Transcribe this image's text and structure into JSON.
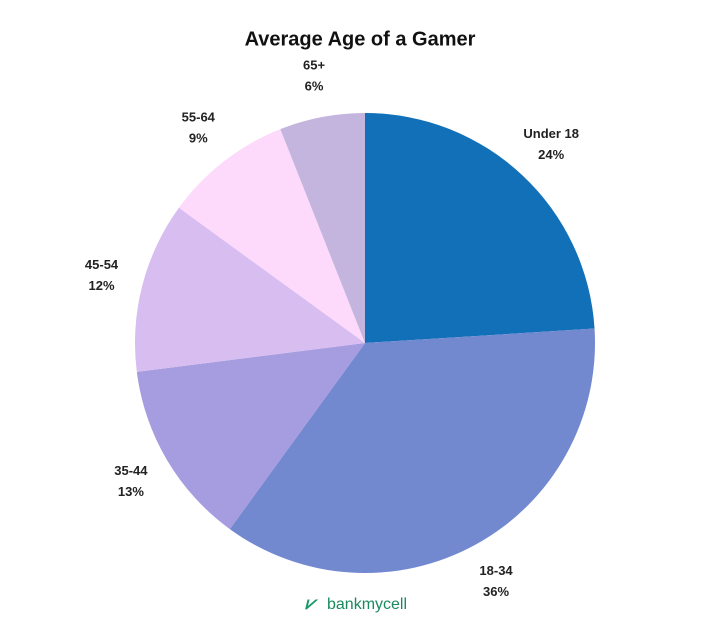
{
  "chart_data": {
    "type": "pie",
    "title": "Average Age of a Gamer",
    "categories": [
      "Under 18",
      "18-34",
      "35-44",
      "45-54",
      "55-64",
      "65+"
    ],
    "values": [
      24,
      36,
      13,
      12,
      9,
      6
    ],
    "value_labels": [
      "24%",
      "36%",
      "13%",
      "12%",
      "9%",
      "6%"
    ],
    "colors": [
      "#1170b8",
      "#7289d0",
      "#a69ce0",
      "#d7bdf0",
      "#fdd9fb",
      "#c3b5dd"
    ],
    "watermark": "bankmycell"
  }
}
